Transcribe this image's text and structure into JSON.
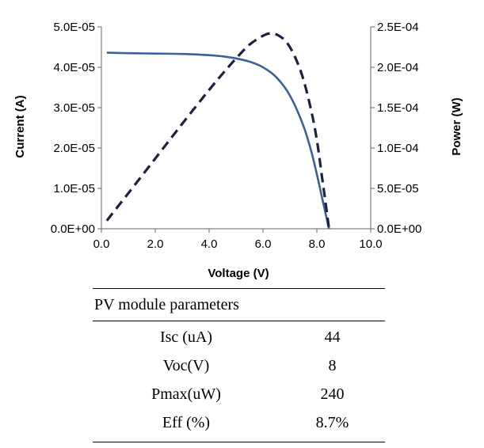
{
  "chart_data": {
    "type": "line",
    "title": "",
    "xlabel": "Voltage (V)",
    "ylabel": "Current (A)",
    "y2label": "Power (W)",
    "xlim": [
      0,
      10
    ],
    "ylim": [
      0,
      5e-05
    ],
    "y2lim": [
      0,
      0.00025
    ],
    "x_ticks": [
      "0.0",
      "2.0",
      "4.0",
      "6.0",
      "8.0",
      "10.0"
    ],
    "y_ticks": [
      "0.0E+00",
      "1.0E-05",
      "2.0E-05",
      "3.0E-05",
      "4.0E-05",
      "5.0E-05"
    ],
    "y2_ticks": [
      "0.0E+00",
      "5.0E-05",
      "1.0E-04",
      "1.5E-04",
      "2.0E-04",
      "2.5E-04"
    ],
    "grid": false,
    "legend": "none",
    "series": [
      {
        "axis": "left",
        "style": "solid",
        "color": "#3d5f9a",
        "x": [
          0.2,
          1.0,
          2.0,
          3.0,
          4.0,
          4.5,
          5.0,
          5.5,
          6.0,
          6.5,
          7.0,
          7.5,
          7.8,
          8.0,
          8.2,
          8.3,
          8.4,
          8.45
        ],
        "y": [
          4.36e-05,
          4.35e-05,
          4.34e-05,
          4.33e-05,
          4.3e-05,
          4.27e-05,
          4.22e-05,
          4.14e-05,
          4e-05,
          3.75e-05,
          3.3e-05,
          2.55e-05,
          1.9e-05,
          1.35e-05,
          7.5e-06,
          4.5e-06,
          1.5e-06,
          0
        ]
      },
      {
        "axis": "right",
        "style": "dashed",
        "color": "#1a2340",
        "x": [
          0.2,
          1.0,
          2.0,
          3.0,
          4.0,
          4.5,
          5.0,
          5.5,
          6.0,
          6.3,
          6.6,
          6.9,
          7.2,
          7.5,
          7.8,
          8.0,
          8.2,
          8.3,
          8.4,
          8.45
        ],
        "y": [
          1e-05,
          4.4e-05,
          8.7e-05,
          0.00013,
          0.000172,
          0.000192,
          0.000211,
          0.000228,
          0.000239,
          0.000242,
          0.000239,
          0.00023,
          0.000212,
          0.000185,
          0.000145,
          0.00011,
          6.2e-05,
          3.8e-05,
          1.3e-05,
          0
        ]
      }
    ]
  },
  "table": {
    "title": "PV module parameters",
    "rows": [
      {
        "label": "Isc (uA)",
        "value": "44"
      },
      {
        "label": "Voc(V)",
        "value": "8"
      },
      {
        "label": "Pmax(uW)",
        "value": "240"
      },
      {
        "label": "Eff (%)",
        "value": "8.7%"
      }
    ]
  }
}
